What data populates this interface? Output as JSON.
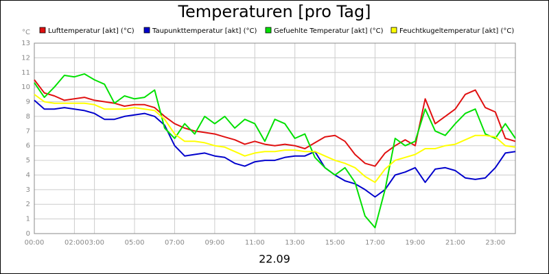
{
  "chart_data": {
    "type": "line",
    "title": "Temperaturen [pro Tag]",
    "y_unit": "°C",
    "date_label": "22.09",
    "x": [
      0,
      0.5,
      1,
      1.5,
      2,
      2.5,
      3,
      3.5,
      4,
      4.5,
      5,
      5.5,
      6,
      6.5,
      7,
      7.5,
      8,
      8.5,
      9,
      9.5,
      10,
      10.5,
      11,
      11.5,
      12,
      12.5,
      13,
      13.5,
      14,
      14.5,
      15,
      15.5,
      16,
      16.5,
      17,
      17.5,
      18,
      18.5,
      19,
      19.5,
      20,
      20.5,
      21,
      21.5,
      22,
      22.5,
      23,
      23.5,
      24
    ],
    "xlim": [
      0,
      24
    ],
    "xticks": [
      {
        "value": 0,
        "label": "00:00"
      },
      {
        "value": 2,
        "label": "02:00"
      },
      {
        "value": 3,
        "label": "03:00"
      },
      {
        "value": 5,
        "label": "05:00"
      },
      {
        "value": 7,
        "label": "07:00"
      },
      {
        "value": 9,
        "label": "09:00"
      },
      {
        "value": 11,
        "label": "11:00"
      },
      {
        "value": 13,
        "label": "13:00"
      },
      {
        "value": 15,
        "label": "15:00"
      },
      {
        "value": 17,
        "label": "17:00"
      },
      {
        "value": 19,
        "label": "19:00"
      },
      {
        "value": 21,
        "label": "21:00"
      },
      {
        "value": 23,
        "label": "23:00"
      }
    ],
    "ylim": [
      0,
      13
    ],
    "yticks": [
      0,
      1,
      2,
      3,
      4,
      5,
      6,
      7,
      8,
      9,
      10,
      11,
      12,
      13
    ],
    "grid": true,
    "series": [
      {
        "name": "Lufttemperatur [akt] (°C)",
        "color": "#e01010",
        "values": [
          10.5,
          9.6,
          9.4,
          9.1,
          9.2,
          9.3,
          9.1,
          9.0,
          8.9,
          8.7,
          8.8,
          8.8,
          8.6,
          8.0,
          7.5,
          7.2,
          7.0,
          6.9,
          6.8,
          6.6,
          6.4,
          6.1,
          6.3,
          6.1,
          6.0,
          6.1,
          6.0,
          5.8,
          6.2,
          6.6,
          6.7,
          6.3,
          5.4,
          4.8,
          4.6,
          5.5,
          6.0,
          6.4,
          6.0,
          9.2,
          7.5,
          8.0,
          8.5,
          9.5,
          9.8,
          8.6,
          8.3,
          6.5,
          6.3
        ]
      },
      {
        "name": "Taupunkttemperatur [akt] (°C)",
        "color": "#0000cc",
        "values": [
          9.1,
          8.5,
          8.5,
          8.6,
          8.5,
          8.4,
          8.2,
          7.8,
          7.8,
          8.0,
          8.1,
          8.2,
          8.0,
          7.4,
          6.0,
          5.3,
          5.4,
          5.5,
          5.3,
          5.2,
          4.8,
          4.6,
          4.9,
          5.0,
          5.0,
          5.2,
          5.3,
          5.3,
          5.6,
          4.5,
          4.0,
          3.6,
          3.4,
          3.0,
          2.5,
          3.0,
          4.0,
          4.2,
          4.5,
          3.5,
          4.4,
          4.5,
          4.3,
          3.8,
          3.7,
          3.8,
          4.5,
          5.5,
          5.6
        ]
      },
      {
        "name": "Gefuehlte Temperatur [akt] (°C)",
        "color": "#00e000",
        "values": [
          10.3,
          9.3,
          10.0,
          10.8,
          10.7,
          10.9,
          10.5,
          10.2,
          8.9,
          9.4,
          9.2,
          9.3,
          9.8,
          7.2,
          6.5,
          7.5,
          6.8,
          8.0,
          7.5,
          8.0,
          7.2,
          7.8,
          7.5,
          6.3,
          7.8,
          7.5,
          6.5,
          6.8,
          5.2,
          4.5,
          4.0,
          4.5,
          3.5,
          1.2,
          0.4,
          3.0,
          6.5,
          6.0,
          6.3,
          8.5,
          7.0,
          6.7,
          7.5,
          8.2,
          8.5,
          6.8,
          6.5,
          7.5,
          6.5
        ]
      },
      {
        "name": "Feuchtkugeltemperatur [akt] (°C)",
        "color": "#ffff00",
        "values": [
          9.5,
          9.0,
          8.9,
          8.9,
          8.9,
          8.9,
          8.8,
          8.5,
          8.5,
          8.5,
          8.6,
          8.5,
          8.4,
          7.8,
          6.8,
          6.3,
          6.3,
          6.2,
          6.0,
          5.9,
          5.6,
          5.3,
          5.5,
          5.6,
          5.6,
          5.7,
          5.7,
          5.6,
          5.6,
          5.3,
          5.0,
          4.8,
          4.5,
          3.9,
          3.5,
          4.4,
          5.0,
          5.2,
          5.4,
          5.8,
          5.8,
          6.0,
          6.1,
          6.4,
          6.7,
          6.7,
          6.6,
          6.0,
          5.9
        ]
      }
    ]
  }
}
